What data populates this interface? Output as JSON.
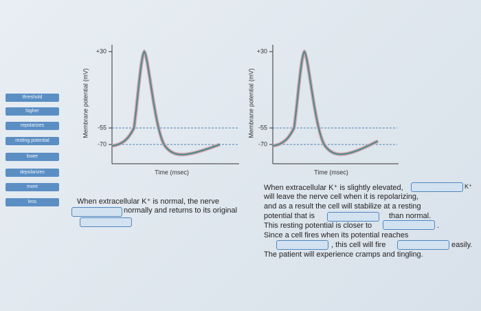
{
  "word_bank": [
    "threshold",
    "higher",
    "repolarizes",
    "resting potential",
    "lower",
    "depolarizes",
    "more",
    "less"
  ],
  "panels": [
    {
      "y_label": "Membrane potential (mV)",
      "ticks": [
        "+30",
        "-55",
        "-70"
      ],
      "x_label": "Time (msec)"
    },
    {
      "y_label": "Membrane potential (mV)",
      "ticks": [
        "+30",
        "-55",
        "-70"
      ],
      "x_label": "Time (msec)"
    }
  ],
  "left_text": {
    "lines": [
      "When extracellular K⁺ is normal, the nerve",
      "normally and returns to its original"
    ]
  },
  "right_text": {
    "lines": [
      "When extracellular K⁺ is slightly elevated,",
      "K⁺",
      "will leave the nerve cell when it is repolarizing,",
      "and as a result the cell will stabilize at a resting",
      "potential that is",
      "than normal.",
      "This resting potential is closer to",
      ".",
      "Since a cell fires when its potential reaches",
      ", this cell will fire",
      "easily.",
      "The patient will experience cramps and tingling."
    ]
  }
}
